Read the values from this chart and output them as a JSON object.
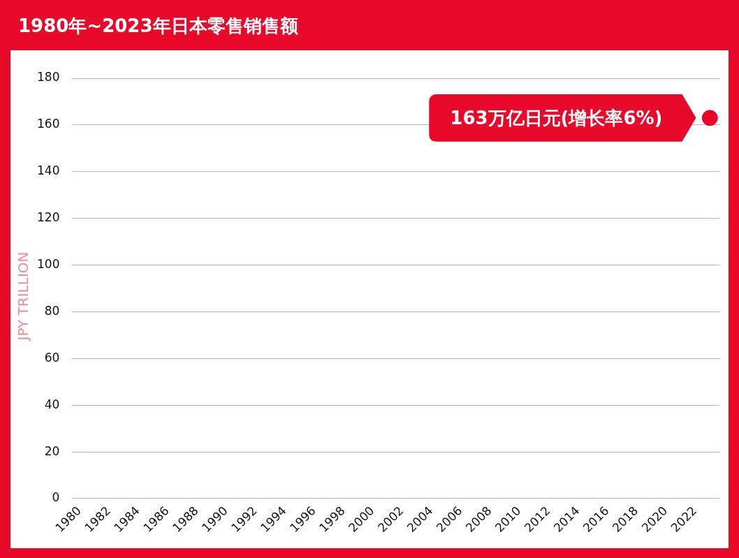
{
  "chart_data": {
    "type": "line",
    "title": "1980年~2023年日本零售销售额",
    "ylabel": "JPY TRILLION",
    "x": [
      2023
    ],
    "xlim": [
      1979.5,
      2023.7
    ],
    "xticks": [
      1980,
      1982,
      1984,
      1986,
      1988,
      1990,
      1992,
      1994,
      1996,
      1998,
      2000,
      2002,
      2004,
      2006,
      2008,
      2010,
      2012,
      2014,
      2016,
      2018,
      2020,
      2022
    ],
    "ylim": [
      0,
      180
    ],
    "yticks": [
      0,
      20,
      40,
      60,
      80,
      100,
      120,
      140,
      160,
      180
    ],
    "series": [
      {
        "color": "#e8092a",
        "values": [
          163
        ]
      }
    ],
    "annotations": [
      {
        "text": "163万亿日元(增长率6%)",
        "x": 2023,
        "y": 163
      }
    ],
    "grid": "y",
    "marker": "circle",
    "legend": false
  }
}
